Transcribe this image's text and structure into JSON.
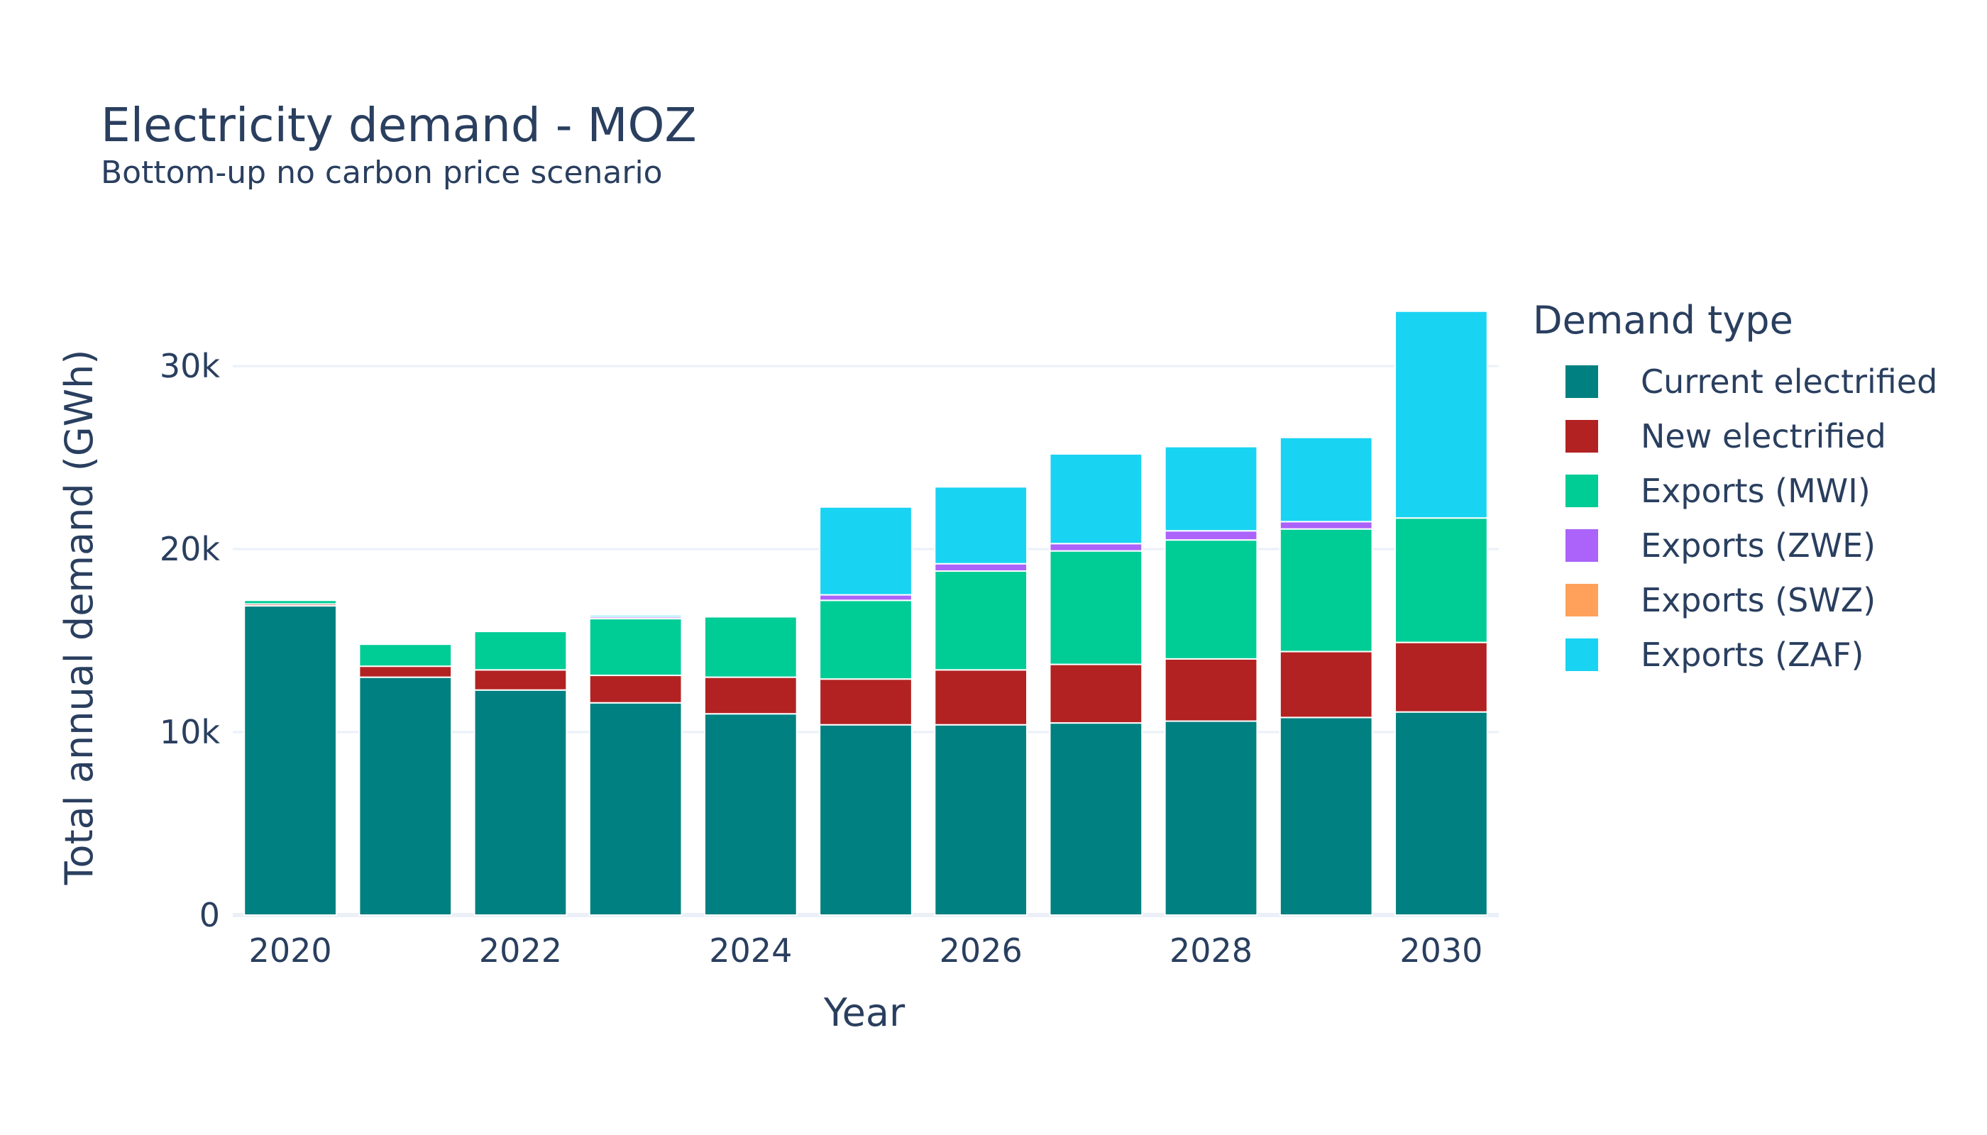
{
  "chart_data": {
    "type": "bar",
    "stacked": true,
    "title": "Electricity demand - MOZ",
    "subtitle": "Bottom-up no carbon price scenario",
    "xlabel": "Year",
    "ylabel": "Total annual demand (GWh)",
    "ylim": [
      0,
      34500
    ],
    "yticks": [
      {
        "value": 0,
        "label": "0"
      },
      {
        "value": 10000,
        "label": "10k"
      },
      {
        "value": 20000,
        "label": "20k"
      },
      {
        "value": 30000,
        "label": "30k"
      }
    ],
    "xticks": [
      "2020",
      "2022",
      "2024",
      "2026",
      "2028",
      "2030"
    ],
    "grid": true,
    "legend_title": "Demand type",
    "legend_position": "right",
    "categories": [
      "2020",
      "2021",
      "2022",
      "2023",
      "2024",
      "2025",
      "2026",
      "2027",
      "2028",
      "2029",
      "2030"
    ],
    "series": [
      {
        "name": "Current electrified",
        "color": "#008080",
        "values": [
          16900,
          13000,
          12300,
          11600,
          11000,
          10400,
          10400,
          10500,
          10600,
          10800,
          11100
        ]
      },
      {
        "name": "New electrified",
        "color": "#b22222",
        "values": [
          100,
          600,
          1100,
          1500,
          2000,
          2500,
          3000,
          3200,
          3400,
          3600,
          3800
        ]
      },
      {
        "name": "Exports (MWI)",
        "color": "#00cc96",
        "values": [
          200,
          1200,
          2100,
          3100,
          3300,
          4300,
          5400,
          6200,
          6500,
          6700,
          6800
        ]
      },
      {
        "name": "Exports (ZWE)",
        "color": "#ab63fa",
        "values": [
          0,
          0,
          0,
          100,
          0,
          300,
          400,
          400,
          500,
          400,
          0
        ]
      },
      {
        "name": "Exports (SWZ)",
        "color": "#ffa15a",
        "values": [
          0,
          0,
          0,
          0,
          0,
          0,
          0,
          0,
          0,
          0,
          0
        ]
      },
      {
        "name": "Exports (ZAF)",
        "color": "#19d3f3",
        "values": [
          0,
          0,
          0,
          100,
          0,
          4800,
          4200,
          4900,
          4600,
          4600,
          11300
        ]
      }
    ]
  }
}
